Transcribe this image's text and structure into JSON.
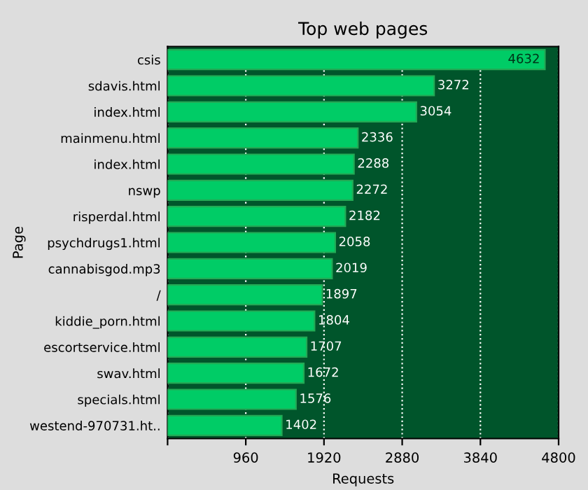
{
  "chart_data": {
    "type": "bar",
    "orientation": "horizontal",
    "title": "Top web pages",
    "xlabel": "Requests",
    "ylabel": "Page",
    "categories": [
      "csis",
      "sdavis.html",
      "index.html",
      "mainmenu.html",
      "index.html",
      "nswp",
      "risperdal.html",
      "psychdrugs1.html",
      "cannabisgod.mp3",
      "/",
      "kiddie_porn.html",
      "escortservice.html",
      "swav.html",
      "specials.html",
      "westend-970731.ht.."
    ],
    "values": [
      4632,
      3272,
      3054,
      2336,
      2288,
      2272,
      2182,
      2058,
      2019,
      1897,
      1804,
      1707,
      1672,
      1576,
      1402
    ],
    "color": "#00cc66",
    "data_labels": true,
    "grid": "x",
    "xlim": [
      0,
      4800
    ],
    "xticks": [
      {
        "value": 0,
        "label": null
      },
      960,
      1920,
      2880,
      3840,
      4800
    ]
  }
}
